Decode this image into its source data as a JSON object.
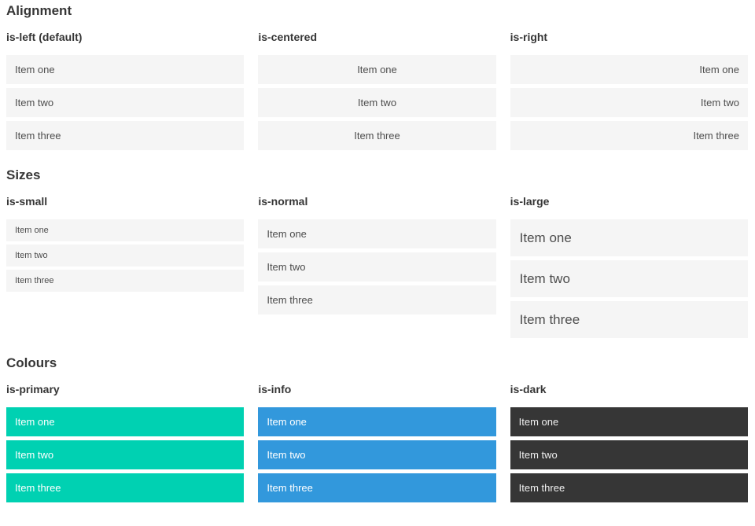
{
  "colors": {
    "primary": "#00d1b2",
    "info": "#3298dc",
    "dark": "#363636",
    "item_light_bg": "#f5f5f5",
    "item_text": "#4d4d4d",
    "heading_text": "#363636"
  },
  "page": {
    "sections": [
      {
        "title": "Alignment",
        "columns": [
          {
            "label": "is-left (default)",
            "variant": "align-left",
            "items": [
              "Item one",
              "Item two",
              "Item three"
            ]
          },
          {
            "label": "is-centered",
            "variant": "align-centered",
            "items": [
              "Item one",
              "Item two",
              "Item three"
            ]
          },
          {
            "label": "is-right",
            "variant": "align-right",
            "items": [
              "Item one",
              "Item two",
              "Item three"
            ]
          }
        ]
      },
      {
        "title": "Sizes",
        "columns": [
          {
            "label": "is-small",
            "variant": "size-small",
            "items": [
              "Item one",
              "Item two",
              "Item three"
            ]
          },
          {
            "label": "is-normal",
            "variant": "size-normal",
            "items": [
              "Item one",
              "Item two",
              "Item three"
            ]
          },
          {
            "label": "is-large",
            "variant": "size-large",
            "items": [
              "Item one",
              "Item two",
              "Item three"
            ]
          }
        ]
      },
      {
        "title": "Colours",
        "columns": [
          {
            "label": "is-primary",
            "variant": "color-primary",
            "items": [
              "Item one",
              "Item two",
              "Item three"
            ]
          },
          {
            "label": "is-info",
            "variant": "color-info",
            "items": [
              "Item one",
              "Item two",
              "Item three"
            ]
          },
          {
            "label": "is-dark",
            "variant": "color-dark",
            "items": [
              "Item one",
              "Item two",
              "Item three"
            ]
          }
        ]
      }
    ]
  }
}
